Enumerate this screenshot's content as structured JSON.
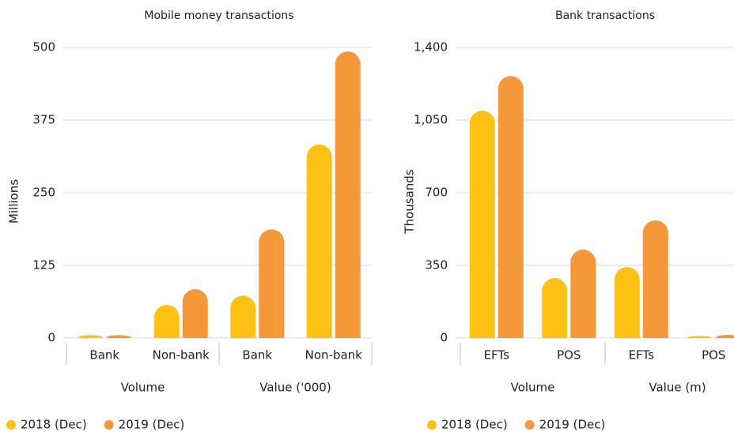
{
  "chart_data": [
    {
      "type": "bar",
      "title": "Mobile money transactions",
      "y_label": "Millions",
      "groups": [
        {
          "label": "Volume",
          "categories": [
            "Bank",
            "Non-bank"
          ]
        },
        {
          "label": "Value ('000)",
          "categories": [
            "Bank",
            "Non-bank"
          ]
        }
      ],
      "series": [
        {
          "name": "2018 (Dec)",
          "color": "#fdc214",
          "values": [
            5,
            57,
            73,
            333
          ]
        },
        {
          "name": "2019 (Dec)",
          "color": "#f5983a",
          "values": [
            5,
            84,
            187,
            493
          ]
        }
      ],
      "ylim": [
        0,
        500
      ],
      "yticks": [
        0,
        125,
        250,
        375,
        500
      ],
      "grid": true,
      "legend": "bottom-left"
    },
    {
      "type": "bar",
      "title": "Bank transactions",
      "y_label": "Thousands",
      "groups": [
        {
          "label": "Volume",
          "categories": [
            "EFTs",
            "POS"
          ]
        },
        {
          "label": "Value (m)",
          "categories": [
            "EFTs",
            "POS"
          ]
        }
      ],
      "series": [
        {
          "name": "2018 (Dec)",
          "color": "#fdc214",
          "values": [
            1095,
            289,
            342,
            10
          ]
        },
        {
          "name": "2019 (Dec)",
          "color": "#f5983a",
          "values": [
            1262,
            426,
            567,
            15
          ]
        }
      ],
      "ylim": [
        0,
        1400
      ],
      "yticks": [
        0,
        350,
        700,
        {
          "value": 1050,
          "label": "1,050"
        },
        {
          "value": 1400,
          "label": "1,400"
        }
      ],
      "grid": true,
      "legend": "bottom-left"
    }
  ]
}
